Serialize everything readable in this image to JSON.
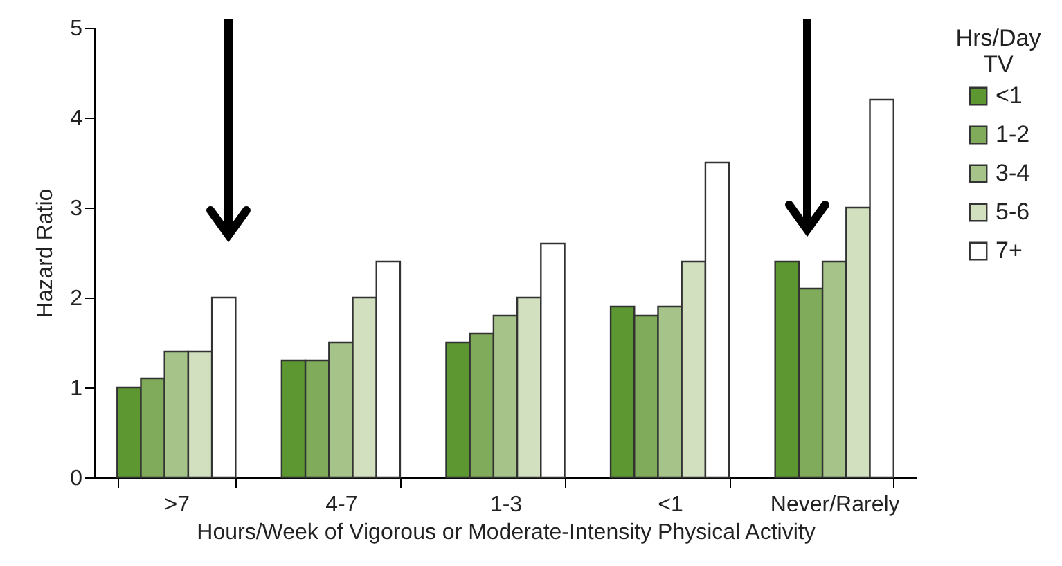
{
  "chart_data": {
    "type": "bar",
    "xlabel": "Hours/Week of Vigorous or Moderate-Intensity Physical Activity",
    "ylabel": "Hazard Ratio",
    "legend_title": "Hrs/Day TV",
    "legend": "right",
    "categories": [
      ">7",
      "4-7",
      "1-3",
      "<1",
      "Never/Rarely"
    ],
    "series": [
      {
        "name": "<1",
        "color": "#5c9732",
        "values": [
          1.0,
          1.3,
          1.5,
          1.9,
          2.4
        ]
      },
      {
        "name": "1-2",
        "color": "#80ab5a",
        "values": [
          1.1,
          1.3,
          1.6,
          1.8,
          2.1
        ]
      },
      {
        "name": "3-4",
        "color": "#a6c48a",
        "values": [
          1.4,
          1.5,
          1.8,
          1.9,
          2.4
        ]
      },
      {
        "name": "5-6",
        "color": "#d2e0c0",
        "values": [
          1.4,
          2.0,
          2.0,
          2.4,
          3.0
        ]
      },
      {
        "name": "7+",
        "color": "#ffffff",
        "values": [
          2.0,
          2.4,
          2.6,
          3.5,
          4.2
        ]
      }
    ],
    "ylim": [
      0,
      5
    ],
    "yticks": [
      0,
      1,
      2,
      3,
      4,
      5
    ],
    "grid": false
  }
}
